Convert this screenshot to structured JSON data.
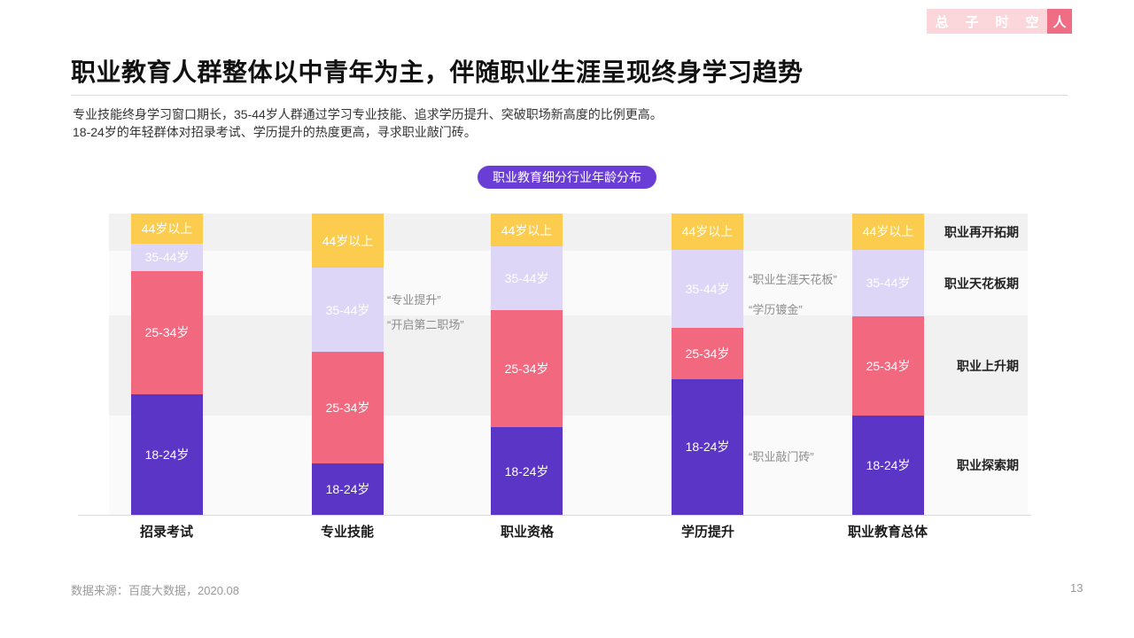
{
  "logo": {
    "tabs": [
      "总",
      "子",
      "时",
      "空",
      "人"
    ],
    "active_tab": "人",
    "inactive_bg": "#fbd7dc",
    "active_bg": "#ef6e85"
  },
  "header": {
    "title": "职业教育人群整体以中青年为主，伴随职业生涯呈现终身学习趋势",
    "subtitle_line1": "专业技能终身学习窗口期长，35-44岁人群通过学习专业技能、追求学历提升、突破职场新高度的比例更高。",
    "subtitle_line2": "18-24岁的年轻群体对招录考试、学历提升的热度更高，寻求职业敲门砖。"
  },
  "chart_badge": "职业教育细分行业年龄分布",
  "chart_data": {
    "type": "bar",
    "stacked": true,
    "unit": "percent_estimated_from_pixels",
    "title": "职业教育细分行业年龄分布",
    "categories": [
      "招录考试",
      "专业技能",
      "职业资格",
      "学历提升",
      "职业教育总体"
    ],
    "series": [
      {
        "name": "18-24岁",
        "color": "#5b35c6",
        "values": [
          40,
          17,
          29,
          45,
          33
        ]
      },
      {
        "name": "25-34岁",
        "color": "#f1687f",
        "values": [
          41,
          37,
          39,
          17,
          33
        ]
      },
      {
        "name": "35-44岁",
        "color": "#ded6f7",
        "values": [
          9,
          28,
          21,
          26,
          22
        ]
      },
      {
        "name": "44岁以上",
        "color": "#fbcc4d",
        "values": [
          10,
          18,
          11,
          12,
          12
        ]
      }
    ],
    "stack_order_top_to_bottom": [
      "44岁以上",
      "35-44岁",
      "25-34岁",
      "18-24岁"
    ],
    "ylim": [
      0,
      100
    ],
    "grid": false,
    "legend": "labels-inside-segments",
    "phase_bands": [
      {
        "label": "职业再开拓期",
        "height_pct": 12
      },
      {
        "label": "职业天花板期",
        "height_pct": 22
      },
      {
        "label": "职业上升期",
        "height_pct": 33
      },
      {
        "label": "职业探索期",
        "height_pct": 33
      }
    ],
    "annotations": [
      {
        "text": "“专业提升”",
        "near_category": "专业技能"
      },
      {
        "text": "“开启第二职场”",
        "near_category": "专业技能"
      },
      {
        "text": "“职业生涯天花板”",
        "near_category": "学历提升"
      },
      {
        "text": "“学历镀金”",
        "near_category": "学历提升"
      },
      {
        "text": "“职业敲门砖”",
        "near_category": "学历提升"
      }
    ]
  },
  "footer": {
    "source": "数据来源：百度大数据，2020.08",
    "page_number": "13"
  }
}
